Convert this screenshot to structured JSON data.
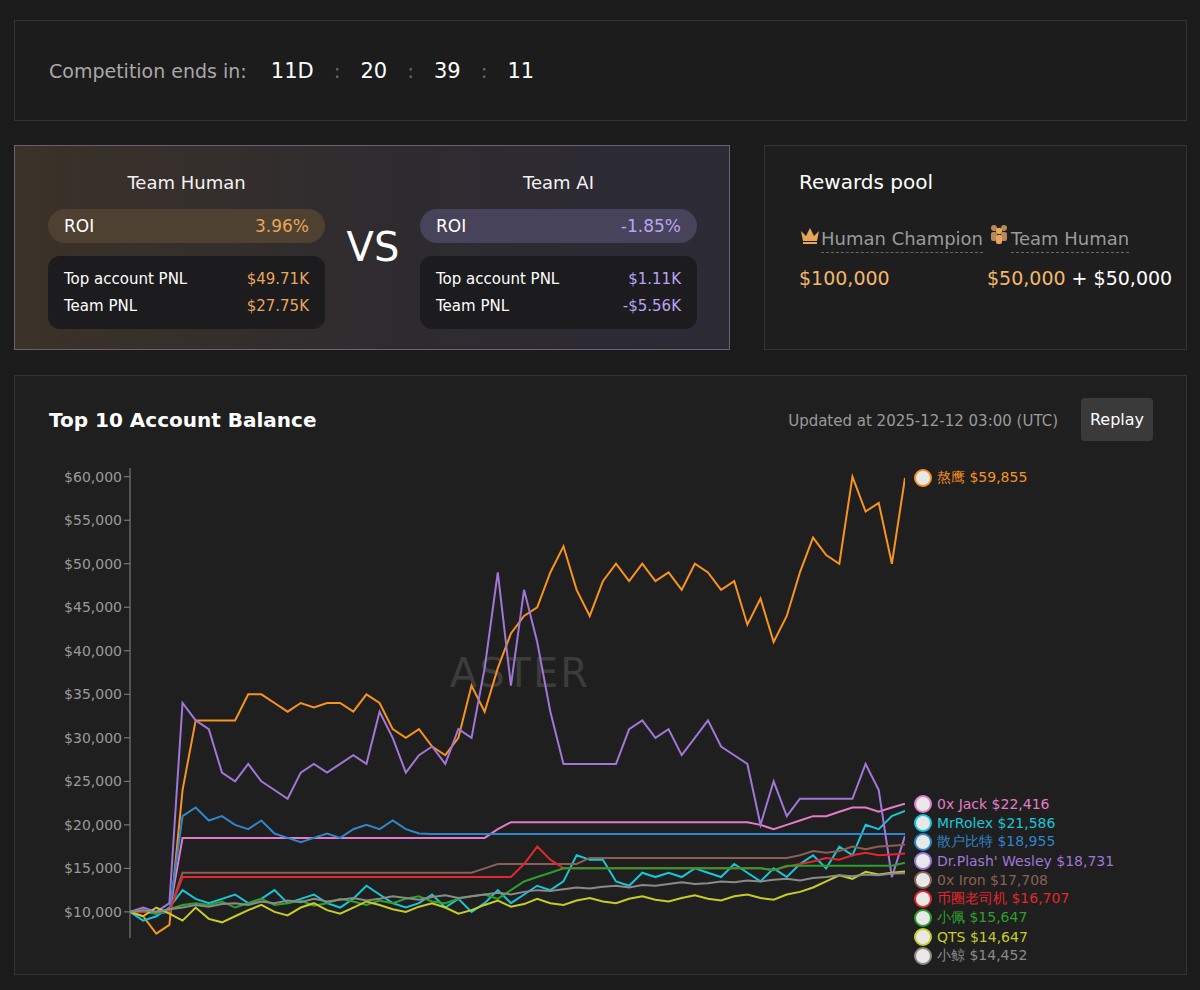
{
  "header": {
    "label": "Competition ends in:",
    "countdown": [
      "11D",
      "20",
      "39",
      "11"
    ],
    "separator": ":"
  },
  "teams": [
    {
      "name": "Team Human",
      "roi_label": "ROI",
      "roi": "3.96%",
      "rows": [
        {
          "label": "Top account PNL",
          "value": "$49.71K"
        },
        {
          "label": "Team PNL",
          "value": "$27.75K"
        }
      ]
    },
    {
      "name": "Team AI",
      "roi_label": "ROI",
      "roi": "-1.85%",
      "rows": [
        {
          "label": "Top account PNL",
          "value": "$1.11K"
        },
        {
          "label": "Team PNL",
          "value": "-$5.56K"
        }
      ]
    }
  ],
  "versus": "VS",
  "rewards": {
    "title": "Rewards pool",
    "items": [
      {
        "label": "Human Champion",
        "amounts": [
          "$100,000"
        ]
      },
      {
        "label": "Team Human",
        "amounts": [
          "$50,000",
          "$50,000"
        ],
        "joiner": "+"
      }
    ]
  },
  "chart_panel": {
    "button": "Replay",
    "watermark": "ASTER"
  },
  "chart_data": {
    "type": "line",
    "title": "Top 10 Account Balance",
    "subtitle": "Updated at 2025-12-12 03:00 (UTC)",
    "x": [
      0,
      1,
      2,
      3,
      4,
      5,
      6,
      7,
      8,
      9,
      10,
      11,
      12,
      13,
      14,
      15,
      16,
      17,
      18,
      19,
      20,
      21,
      22,
      23,
      24,
      25,
      26,
      27,
      28,
      29,
      30,
      31,
      32,
      33,
      34,
      35,
      36,
      37,
      38,
      39,
      40,
      41,
      42,
      43,
      44,
      45,
      46,
      47,
      48,
      49,
      50,
      51,
      52,
      53,
      54,
      55,
      56,
      57,
      58,
      59
    ],
    "xlim": [
      0,
      59
    ],
    "ylim": [
      7000,
      61000
    ],
    "yticks": [
      {
        "value": 10000,
        "label": "$10,000"
      },
      {
        "value": 15000,
        "label": "$15,000"
      },
      {
        "value": 20000,
        "label": "$20,000"
      },
      {
        "value": 25000,
        "label": "$25,000"
      },
      {
        "value": 30000,
        "label": "$30,000"
      },
      {
        "value": 35000,
        "label": "$35,000"
      },
      {
        "value": 40000,
        "label": "$40,000"
      },
      {
        "value": 45000,
        "label": "$45,000"
      },
      {
        "value": 50000,
        "label": "$50,000"
      },
      {
        "value": 55000,
        "label": "$55,000"
      },
      {
        "value": 60000,
        "label": "$60,000"
      }
    ],
    "grid": false,
    "tick_labels": "y",
    "series": [
      {
        "name": "熬鹰",
        "color": "#f7931e",
        "value_label": "$59,855",
        "values": [
          10000,
          9500,
          7500,
          8500,
          24000,
          32000,
          32000,
          32000,
          32000,
          35000,
          35000,
          34000,
          33000,
          34000,
          33500,
          34000,
          34000,
          33000,
          35000,
          34000,
          31000,
          30000,
          31000,
          29000,
          28000,
          30000,
          36000,
          33000,
          38000,
          42000,
          44000,
          45000,
          49000,
          52000,
          47000,
          44000,
          48000,
          50000,
          48000,
          50000,
          48000,
          49000,
          47000,
          50000,
          49000,
          47000,
          48000,
          43000,
          46000,
          41000,
          44000,
          49000,
          53000,
          51000,
          50000,
          60000,
          56000,
          57000,
          50000,
          59855
        ]
      },
      {
        "name": "0x Jack",
        "color": "#e57bc8",
        "value_label": "$22,416",
        "values": [
          10000,
          10000,
          10000,
          10000,
          18500,
          18500,
          18500,
          18500,
          18500,
          18500,
          18500,
          18500,
          18500,
          18500,
          18500,
          18500,
          18500,
          18500,
          18500,
          18500,
          18500,
          18500,
          18500,
          18500,
          18500,
          18500,
          18500,
          18500,
          19500,
          20300,
          20300,
          20300,
          20300,
          20300,
          20300,
          20300,
          20300,
          20300,
          20300,
          20300,
          20300,
          20300,
          20300,
          20300,
          20300,
          20300,
          20300,
          20300,
          20000,
          19500,
          20000,
          20500,
          21000,
          21000,
          21500,
          22000,
          22000,
          21500,
          22000,
          22416
        ]
      },
      {
        "name": "MrRolex",
        "color": "#17c6d8",
        "value_label": "$21,586",
        "values": [
          10000,
          9000,
          9500,
          10500,
          12500,
          11500,
          11000,
          11500,
          12000,
          11000,
          11500,
          12500,
          11000,
          11500,
          12000,
          11000,
          10500,
          11500,
          13000,
          12000,
          11000,
          10500,
          11000,
          12000,
          10500,
          11500,
          10000,
          11000,
          12500,
          11000,
          12000,
          13000,
          12500,
          13500,
          16500,
          16000,
          16000,
          13500,
          13000,
          14500,
          14000,
          14500,
          14000,
          15000,
          14500,
          14000,
          15500,
          14500,
          13500,
          15000,
          14000,
          15500,
          16500,
          15000,
          17500,
          16500,
          20000,
          19500,
          21000,
          21586
        ]
      },
      {
        "name": "散户比特",
        "color": "#2f86c8",
        "value_label": "$18,955",
        "values": [
          10000,
          10000,
          9800,
          10000,
          21000,
          22000,
          20500,
          21000,
          20000,
          19500,
          20500,
          19000,
          18500,
          18000,
          18500,
          19000,
          18500,
          19500,
          20000,
          19500,
          20500,
          19500,
          19000,
          18955,
          18955,
          18955,
          18955,
          18955,
          18955,
          18955,
          18955,
          18955,
          18955,
          18955,
          18955,
          18955,
          18955,
          18955,
          18955,
          18955,
          18955,
          18955,
          18955,
          18955,
          18955,
          18955,
          18955,
          18955,
          18955,
          18955,
          18955,
          18955,
          18955,
          18955,
          18955,
          18955,
          18955,
          18955,
          18955,
          18955
        ]
      },
      {
        "name": "Dr.Plash' Wesley",
        "color": "#a176d6",
        "value_label": "$18,731",
        "values": [
          10000,
          10500,
          10000,
          11000,
          34000,
          32000,
          31000,
          26000,
          25000,
          27000,
          25000,
          24000,
          23000,
          26000,
          27000,
          26000,
          27000,
          28000,
          27000,
          33000,
          30000,
          26000,
          28000,
          29000,
          27000,
          31000,
          30000,
          38000,
          49000,
          36000,
          47000,
          41000,
          33000,
          27000,
          27000,
          27000,
          27000,
          27000,
          31000,
          32000,
          30000,
          31000,
          28000,
          30000,
          32000,
          29000,
          28000,
          27000,
          20000,
          25000,
          21000,
          23000,
          23000,
          23000,
          23000,
          23000,
          27000,
          24000,
          14000,
          18731
        ]
      },
      {
        "name": "0x Iron",
        "color": "#8c5f55",
        "value_label": "$17,708",
        "values": [
          10000,
          10000,
          10000,
          10000,
          14500,
          14500,
          14500,
          14500,
          14500,
          14500,
          14500,
          14500,
          14500,
          14500,
          14500,
          14500,
          14500,
          14500,
          14500,
          14500,
          14500,
          14500,
          14500,
          14500,
          14500,
          14500,
          14500,
          15000,
          15500,
          15500,
          15500,
          15500,
          15500,
          15500,
          15500,
          16200,
          16200,
          16200,
          16200,
          16200,
          16200,
          16200,
          16200,
          16200,
          16200,
          16200,
          16200,
          16200,
          16200,
          16200,
          16200,
          16500,
          17000,
          16800,
          17000,
          17500,
          17200,
          17500,
          17600,
          17708
        ]
      },
      {
        "name": "币圈老司机",
        "color": "#e0282e",
        "value_label": "$16,707",
        "values": [
          10000,
          10000,
          10000,
          10000,
          14000,
          14000,
          14000,
          14000,
          14000,
          14000,
          14000,
          14000,
          14000,
          14000,
          14000,
          14000,
          14000,
          14000,
          14000,
          14000,
          14000,
          14000,
          14000,
          14000,
          14000,
          14000,
          14000,
          14000,
          14000,
          14000,
          15500,
          17500,
          16000,
          15000,
          15000,
          15000,
          15000,
          15000,
          15000,
          15000,
          15000,
          15000,
          15000,
          15000,
          15000,
          15000,
          15000,
          15000,
          15000,
          14800,
          15200,
          15500,
          15800,
          16200,
          16000,
          16500,
          16800,
          16500,
          16600,
          16707
        ]
      },
      {
        "name": "小佩",
        "color": "#2ca02c",
        "value_label": "$15,647",
        "values": [
          10000,
          10200,
          9800,
          10300,
          10800,
          11000,
          10800,
          11200,
          10500,
          11000,
          11500,
          10800,
          11000,
          11300,
          10700,
          11000,
          11500,
          11200,
          10800,
          11300,
          11000,
          11500,
          11800,
          11200,
          11000,
          11500,
          11800,
          12000,
          11500,
          12500,
          13500,
          14000,
          14500,
          15000,
          15000,
          15000,
          15000,
          15000,
          15000,
          15000,
          15000,
          15000,
          15000,
          15000,
          15000,
          15000,
          15000,
          15000,
          15000,
          14800,
          15300,
          15300,
          15300,
          15300,
          15300,
          15300,
          15300,
          15300,
          15300,
          15647
        ]
      },
      {
        "name": "QTS",
        "color": "#c8cc26",
        "value_label": "$14,647",
        "values": [
          10000,
          9500,
          10500,
          9800,
          9000,
          10500,
          9200,
          8800,
          9500,
          10200,
          10800,
          10000,
          9600,
          10500,
          11000,
          10200,
          9800,
          10500,
          11200,
          10800,
          10300,
          10000,
          10600,
          11000,
          10500,
          9800,
          10200,
          10800,
          11300,
          10600,
          10900,
          11500,
          11000,
          10800,
          11300,
          11600,
          11200,
          11000,
          11500,
          11800,
          11400,
          11200,
          11600,
          11900,
          11500,
          11300,
          11800,
          12000,
          11600,
          11400,
          12000,
          12300,
          12800,
          13500,
          14200,
          13800,
          14600,
          14300,
          14500,
          14647
        ]
      },
      {
        "name": "小鲸",
        "color": "#8a8a8a",
        "value_label": "$14,452",
        "values": [
          10000,
          10200,
          10000,
          10300,
          10500,
          10800,
          10600,
          10900,
          11000,
          10800,
          11200,
          11000,
          11300,
          11100,
          11500,
          11200,
          11400,
          11600,
          11300,
          11500,
          11800,
          11600,
          11400,
          11700,
          11900,
          11600,
          11800,
          12000,
          12200,
          12000,
          12300,
          12500,
          12400,
          12600,
          12800,
          12700,
          12900,
          13000,
          12800,
          13100,
          13000,
          13200,
          13400,
          13200,
          13300,
          13500,
          13400,
          13600,
          13500,
          13700,
          13800,
          13600,
          13900,
          14000,
          14200,
          14100,
          14300,
          14200,
          14400,
          14452
        ]
      }
    ]
  }
}
